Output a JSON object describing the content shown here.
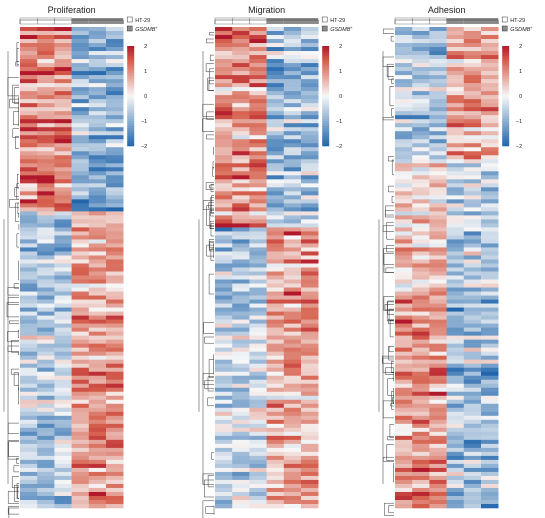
{
  "colors": {
    "low": "#2166ac",
    "mid": "#f7f7f7",
    "high": "#d6604d",
    "max": "#b2182b",
    "group_HT29": "#ffffff",
    "group_GSDMB": "#8c8c8c"
  },
  "legend_groups": [
    {
      "label": "HT-29",
      "color": "#ffffff",
      "italic": false
    },
    {
      "label": "GSDMB",
      "superscript": "+",
      "color": "#8c8c8c",
      "italic": true
    }
  ],
  "chart_data": [
    {
      "type": "heatmap",
      "title": "Proliferation",
      "columns": 6,
      "rows": 120,
      "column_groups": [
        "HT-29",
        "HT-29",
        "HT-29",
        "GSDMB+",
        "GSDMB+",
        "GSDMB+"
      ],
      "scale_ticks": [
        2,
        1,
        0,
        -1,
        -2
      ],
      "color_range": [
        -2,
        2
      ],
      "row_pattern": [
        {
          "fraction": 0.38,
          "group_means": [
            0.9,
            -0.8
          ]
        },
        {
          "fraction": 0.22,
          "group_means": [
            -0.6,
            0.5
          ]
        },
        {
          "fraction": 0.4,
          "group_means": [
            -0.4,
            0.7
          ]
        }
      ]
    },
    {
      "type": "heatmap",
      "title": "Migration",
      "columns": 6,
      "rows": 120,
      "column_groups": [
        "HT-29",
        "HT-29",
        "HT-29",
        "GSDMB+",
        "GSDMB+",
        "GSDMB+"
      ],
      "scale_ticks": [
        2,
        1,
        0,
        -1,
        -2
      ],
      "color_range": [
        -2,
        2
      ],
      "row_pattern": [
        {
          "fraction": 0.42,
          "group_means": [
            0.8,
            -0.7
          ]
        },
        {
          "fraction": 0.18,
          "group_means": [
            -0.7,
            0.9
          ]
        },
        {
          "fraction": 0.4,
          "group_means": [
            -0.3,
            0.6
          ]
        }
      ]
    },
    {
      "type": "heatmap",
      "title": "Adhesion",
      "columns": 6,
      "rows": 120,
      "column_groups": [
        "HT-29",
        "HT-29",
        "HT-29",
        "GSDMB+",
        "GSDMB+",
        "GSDMB+"
      ],
      "scale_ticks": [
        2,
        1,
        0,
        -1,
        -2
      ],
      "color_range": [
        -2,
        2
      ],
      "row_pattern": [
        {
          "fraction": 0.28,
          "group_means": [
            -0.6,
            0.6
          ]
        },
        {
          "fraction": 0.27,
          "group_means": [
            0.3,
            -0.4
          ]
        },
        {
          "fraction": 0.45,
          "group_means": [
            0.8,
            -0.7
          ]
        }
      ]
    }
  ]
}
